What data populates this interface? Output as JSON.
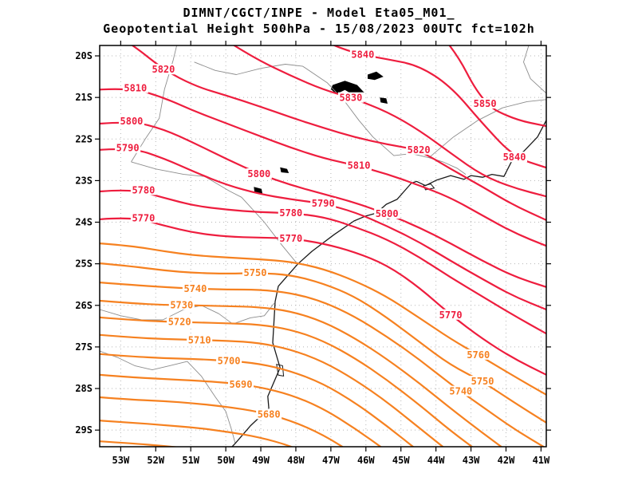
{
  "header": {
    "line1": "DIMNT/CGCT/INPE -  Model Eta05_M01_",
    "line2": "Geopotential Height 500hPa -  15/08/2023 00UTC fct=102h"
  },
  "colors": {
    "red": "#ee1d3e",
    "orange": "#f68120",
    "coast": "#1a1a1a",
    "state_border": "#8d8d8d",
    "grid": "#b5b5b5",
    "water": "#000000",
    "frame": "#000000"
  },
  "chart_data": {
    "type": "contour-map",
    "variable": "Geopotential Height 500hPa",
    "contour_interval": 10,
    "x_axis": {
      "ticks": [
        53,
        52,
        51,
        50,
        49,
        48,
        47,
        46,
        45,
        44,
        43,
        42,
        41
      ],
      "suffix": "W",
      "range_lon_w": [
        53.6,
        40.85
      ]
    },
    "y_axis": {
      "ticks": [
        20,
        21,
        22,
        23,
        24,
        25,
        26,
        27,
        28,
        29
      ],
      "suffix": "S",
      "range_lat_s": [
        19.75,
        29.4
      ]
    },
    "station_lons_w": [
      53.6,
      52.69,
      51.78,
      50.87,
      49.96,
      49.05,
      48.14,
      47.22,
      46.31,
      45.4,
      44.49,
      43.58,
      42.67,
      41.76,
      40.85
    ],
    "contours": [
      {
        "level": 5850,
        "color": "red",
        "lats": [
          null,
          null,
          null,
          null,
          null,
          null,
          null,
          null,
          null,
          null,
          18.94,
          19.65,
          21.15,
          21.53,
          21.69
        ],
        "labels": [
          {
            "lon": 42.6,
            "lat": 21.15
          }
        ]
      },
      {
        "level": 5840,
        "color": "red",
        "lats": [
          null,
          null,
          null,
          null,
          null,
          18.82,
          19.14,
          19.65,
          19.94,
          20.08,
          20.23,
          20.73,
          21.63,
          22.44,
          22.69
        ],
        "labels": [
          {
            "lon": 46.09,
            "lat": 19.97
          },
          {
            "lon": 41.76,
            "lat": 22.44
          }
        ]
      },
      {
        "level": 5830,
        "color": "red",
        "lats": [
          null,
          null,
          18.56,
          19.14,
          19.65,
          20.11,
          20.48,
          20.81,
          21.04,
          21.34,
          21.78,
          22.34,
          22.88,
          23.18,
          23.38
        ],
        "labels": [
          {
            "lon": 46.43,
            "lat": 21.01
          }
        ]
      },
      {
        "level": 5820,
        "color": "red",
        "lats": [
          19.23,
          19.71,
          20.33,
          20.73,
          20.96,
          21.21,
          21.48,
          21.73,
          21.96,
          22.13,
          22.26,
          22.72,
          23.15,
          23.6,
          23.95
        ],
        "labels": [
          {
            "lon": 51.78,
            "lat": 20.33
          },
          {
            "lon": 44.49,
            "lat": 22.26
          }
        ]
      },
      {
        "level": 5810,
        "color": "red",
        "lats": [
          20.81,
          20.77,
          21.0,
          21.34,
          21.63,
          21.92,
          22.21,
          22.46,
          22.63,
          22.84,
          23.11,
          23.41,
          23.84,
          24.26,
          24.57
        ],
        "labels": [
          {
            "lon": 52.58,
            "lat": 20.78
          },
          {
            "lon": 46.2,
            "lat": 22.64
          }
        ]
      },
      {
        "level": 5800,
        "color": "red",
        "lats": [
          21.63,
          21.57,
          21.76,
          22.11,
          22.49,
          22.84,
          23.11,
          23.32,
          23.53,
          23.8,
          24.12,
          24.51,
          24.93,
          25.31,
          25.56
        ],
        "labels": [
          {
            "lon": 52.69,
            "lat": 21.57
          },
          {
            "lon": 49.05,
            "lat": 22.84
          },
          {
            "lon": 45.4,
            "lat": 23.8
          }
        ]
      },
      {
        "level": 5790,
        "color": "red",
        "lats": [
          22.26,
          22.21,
          22.46,
          22.8,
          23.11,
          23.32,
          23.45,
          23.55,
          23.76,
          24.09,
          24.47,
          24.93,
          25.37,
          25.79,
          26.1
        ],
        "labels": [
          {
            "lon": 52.8,
            "lat": 22.22
          },
          {
            "lon": 47.22,
            "lat": 23.55
          }
        ]
      },
      {
        "level": 5780,
        "color": "red",
        "lats": [
          23.26,
          23.2,
          23.41,
          23.61,
          23.7,
          23.76,
          23.78,
          23.87,
          24.11,
          24.41,
          24.83,
          25.33,
          25.79,
          26.25,
          26.68
        ],
        "labels": [
          {
            "lon": 52.35,
            "lat": 23.23
          },
          {
            "lon": 48.14,
            "lat": 23.78
          }
        ]
      },
      {
        "level": 5770,
        "color": "red",
        "lats": [
          23.93,
          23.87,
          24.08,
          24.26,
          24.35,
          24.37,
          24.39,
          24.51,
          24.72,
          25.03,
          25.56,
          26.23,
          26.81,
          27.29,
          27.67
        ],
        "labels": [
          {
            "lon": 52.35,
            "lat": 23.9
          },
          {
            "lon": 48.14,
            "lat": 24.39
          },
          {
            "lon": 43.58,
            "lat": 26.23
          }
        ]
      },
      {
        "level": 5760,
        "color": "orange",
        "lats": [
          24.51,
          24.57,
          24.7,
          24.8,
          24.85,
          24.89,
          24.95,
          25.12,
          25.41,
          25.79,
          26.29,
          26.81,
          27.25,
          27.71,
          28.15
        ],
        "labels": [
          {
            "lon": 42.79,
            "lat": 27.19
          }
        ]
      },
      {
        "level": 5750,
        "color": "orange",
        "lats": [
          24.99,
          25.06,
          25.16,
          25.22,
          25.24,
          25.22,
          25.27,
          25.47,
          25.79,
          26.29,
          26.87,
          27.44,
          27.83,
          28.34,
          28.82
        ],
        "labels": [
          {
            "lon": 49.16,
            "lat": 25.22
          },
          {
            "lon": 42.67,
            "lat": 27.83
          }
        ]
      },
      {
        "level": 5740,
        "color": "orange",
        "lats": [
          25.45,
          25.51,
          25.56,
          25.6,
          25.62,
          25.62,
          25.7,
          25.91,
          26.27,
          26.75,
          27.29,
          27.9,
          28.44,
          28.98,
          29.44
        ],
        "labels": [
          {
            "lon": 50.87,
            "lat": 25.6
          },
          {
            "lon": 43.29,
            "lat": 28.07
          }
        ]
      },
      {
        "level": 5730,
        "color": "orange",
        "lats": [
          25.89,
          25.95,
          25.99,
          26.0,
          26.02,
          26.04,
          26.14,
          26.39,
          26.79,
          27.29,
          27.86,
          28.48,
          29.07,
          29.63,
          30.09
        ],
        "labels": [
          {
            "lon": 51.26,
            "lat": 25.99
          }
        ]
      },
      {
        "level": 5720,
        "color": "orange",
        "lats": [
          26.29,
          26.35,
          26.39,
          26.41,
          26.43,
          26.46,
          26.58,
          26.85,
          27.27,
          27.79,
          28.38,
          29.02,
          29.59,
          30.13,
          null
        ],
        "labels": [
          {
            "lon": 51.32,
            "lat": 26.4
          }
        ]
      },
      {
        "level": 5710,
        "color": "orange",
        "lats": [
          26.71,
          26.77,
          26.81,
          26.83,
          26.85,
          26.9,
          27.06,
          27.35,
          27.79,
          28.32,
          28.94,
          29.55,
          null,
          null,
          null
        ],
        "labels": [
          {
            "lon": 50.75,
            "lat": 26.84
          }
        ]
      },
      {
        "level": 5700,
        "color": "orange",
        "lats": [
          27.17,
          27.23,
          27.27,
          27.29,
          27.33,
          27.4,
          27.58,
          27.88,
          28.34,
          28.9,
          29.51,
          null,
          null,
          null,
          null
        ],
        "labels": [
          {
            "lon": 49.91,
            "lat": 27.34
          }
        ]
      },
      {
        "level": 5690,
        "color": "orange",
        "lats": [
          27.67,
          27.73,
          27.77,
          27.81,
          27.86,
          27.96,
          28.15,
          28.48,
          28.96,
          29.51,
          null,
          null,
          null,
          null,
          null
        ],
        "labels": [
          {
            "lon": 49.57,
            "lat": 27.9
          }
        ]
      },
      {
        "level": 5680,
        "color": "orange",
        "lats": [
          28.21,
          28.27,
          28.3,
          28.36,
          28.44,
          28.56,
          28.77,
          29.11,
          29.59,
          null,
          null,
          null,
          null,
          null,
          null
        ],
        "labels": [
          {
            "lon": 48.77,
            "lat": 28.62
          }
        ]
      },
      {
        "level": 5670,
        "color": "orange",
        "lats": [
          28.77,
          28.82,
          28.88,
          28.94,
          29.04,
          29.17,
          29.38,
          29.72,
          null,
          null,
          null,
          null,
          null,
          null,
          null
        ],
        "labels": []
      },
      {
        "level": 5660,
        "color": "orange",
        "lats": [
          29.27,
          29.32,
          29.38,
          29.46,
          29.55,
          null,
          null,
          null,
          null,
          null,
          null,
          null,
          null,
          null,
          null
        ],
        "labels": []
      }
    ],
    "basemap": {
      "coastline": [
        [
          40.85,
          21.55
        ],
        [
          41.1,
          21.95
        ],
        [
          41.5,
          22.3
        ],
        [
          41.81,
          22.49
        ],
        [
          42.06,
          22.9
        ],
        [
          42.4,
          22.85
        ],
        [
          42.67,
          22.92
        ],
        [
          43.0,
          22.88
        ],
        [
          43.2,
          22.97
        ],
        [
          43.58,
          22.88
        ],
        [
          43.99,
          22.99
        ],
        [
          44.3,
          23.12
        ],
        [
          44.55,
          23.02
        ],
        [
          44.7,
          23.06
        ],
        [
          45.11,
          23.45
        ],
        [
          45.42,
          23.57
        ],
        [
          45.7,
          23.78
        ],
        [
          46.0,
          23.85
        ],
        [
          46.34,
          23.97
        ],
        [
          46.91,
          24.3
        ],
        [
          47.54,
          24.7
        ],
        [
          47.95,
          25.01
        ],
        [
          48.5,
          25.54
        ],
        [
          48.59,
          25.91
        ],
        [
          48.66,
          26.9
        ],
        [
          48.45,
          27.5
        ],
        [
          48.8,
          28.19
        ],
        [
          48.77,
          28.48
        ],
        [
          49.3,
          28.9
        ],
        [
          49.73,
          29.32
        ],
        [
          49.82,
          29.4
        ]
      ],
      "islands": [
        [
          [
            44.35,
            23.12
          ],
          [
            44.15,
            23.08
          ],
          [
            44.05,
            23.18
          ],
          [
            44.3,
            23.22
          ]
        ],
        [
          [
            45.45,
            23.75
          ],
          [
            45.25,
            23.72
          ],
          [
            45.18,
            23.88
          ],
          [
            45.38,
            23.92
          ]
        ],
        [
          [
            48.55,
            27.42
          ],
          [
            48.38,
            27.45
          ],
          [
            48.35,
            27.7
          ],
          [
            48.5,
            27.68
          ]
        ]
      ],
      "lakes": [
        [
          [
            46.95,
            20.7
          ],
          [
            46.6,
            20.6
          ],
          [
            46.25,
            20.7
          ],
          [
            46.05,
            20.88
          ],
          [
            46.3,
            20.97
          ],
          [
            46.6,
            20.82
          ],
          [
            46.85,
            20.92
          ],
          [
            47.0,
            20.8
          ]
        ],
        [
          [
            45.95,
            20.45
          ],
          [
            45.7,
            20.38
          ],
          [
            45.5,
            20.5
          ],
          [
            45.75,
            20.58
          ],
          [
            45.95,
            20.55
          ]
        ],
        [
          [
            45.6,
            21.0
          ],
          [
            45.42,
            21.02
          ],
          [
            45.38,
            21.15
          ],
          [
            45.58,
            21.12
          ]
        ],
        [
          [
            48.45,
            22.68
          ],
          [
            48.25,
            22.72
          ],
          [
            48.2,
            22.82
          ],
          [
            48.42,
            22.8
          ]
        ],
        [
          [
            49.2,
            23.15
          ],
          [
            48.98,
            23.2
          ],
          [
            48.95,
            23.32
          ],
          [
            49.18,
            23.28
          ]
        ]
      ],
      "state_borders": [
        [
          [
            51.4,
            19.75
          ],
          [
            51.5,
            20.1
          ],
          [
            51.75,
            20.8
          ],
          [
            51.9,
            21.5
          ],
          [
            52.3,
            22.0
          ],
          [
            52.7,
            22.55
          ]
        ],
        [
          [
            52.7,
            22.55
          ],
          [
            52.0,
            22.72
          ],
          [
            51.2,
            22.85
          ],
          [
            50.6,
            22.9
          ],
          [
            49.9,
            23.25
          ],
          [
            49.55,
            23.4
          ],
          [
            48.9,
            24.0
          ],
          [
            48.4,
            24.55
          ],
          [
            47.95,
            25.01
          ]
        ],
        [
          [
            50.9,
            20.15
          ],
          [
            50.3,
            20.35
          ],
          [
            49.7,
            20.45
          ],
          [
            49.0,
            20.3
          ],
          [
            48.3,
            20.2
          ],
          [
            47.8,
            20.25
          ],
          [
            47.1,
            20.65
          ],
          [
            46.6,
            21.1
          ],
          [
            46.2,
            21.55
          ],
          [
            45.8,
            21.95
          ],
          [
            45.2,
            22.4
          ],
          [
            44.7,
            22.35
          ],
          [
            44.2,
            22.45
          ],
          [
            43.8,
            22.55
          ],
          [
            43.4,
            22.7
          ],
          [
            43.15,
            22.85
          ]
        ],
        [
          [
            44.2,
            22.45
          ],
          [
            43.5,
            21.95
          ],
          [
            42.8,
            21.55
          ],
          [
            42.1,
            21.25
          ],
          [
            41.4,
            21.1
          ],
          [
            40.85,
            21.05
          ]
        ],
        [
          [
            40.85,
            20.9
          ],
          [
            41.3,
            20.55
          ],
          [
            41.5,
            20.15
          ],
          [
            41.35,
            19.75
          ]
        ],
        [
          [
            53.6,
            26.1
          ],
          [
            53.0,
            26.25
          ],
          [
            52.4,
            26.35
          ],
          [
            51.8,
            26.35
          ],
          [
            51.2,
            26.1
          ],
          [
            50.7,
            26.0
          ],
          [
            50.2,
            26.2
          ],
          [
            49.8,
            26.45
          ],
          [
            49.3,
            26.3
          ],
          [
            48.9,
            26.25
          ],
          [
            48.62,
            25.95
          ]
        ],
        [
          [
            53.6,
            27.1
          ],
          [
            53.1,
            27.25
          ],
          [
            52.6,
            27.45
          ],
          [
            52.1,
            27.55
          ],
          [
            51.6,
            27.45
          ],
          [
            51.1,
            27.35
          ],
          [
            50.7,
            27.7
          ],
          [
            50.3,
            28.2
          ],
          [
            50.0,
            28.55
          ],
          [
            49.85,
            28.95
          ],
          [
            49.73,
            29.32
          ]
        ]
      ]
    }
  }
}
